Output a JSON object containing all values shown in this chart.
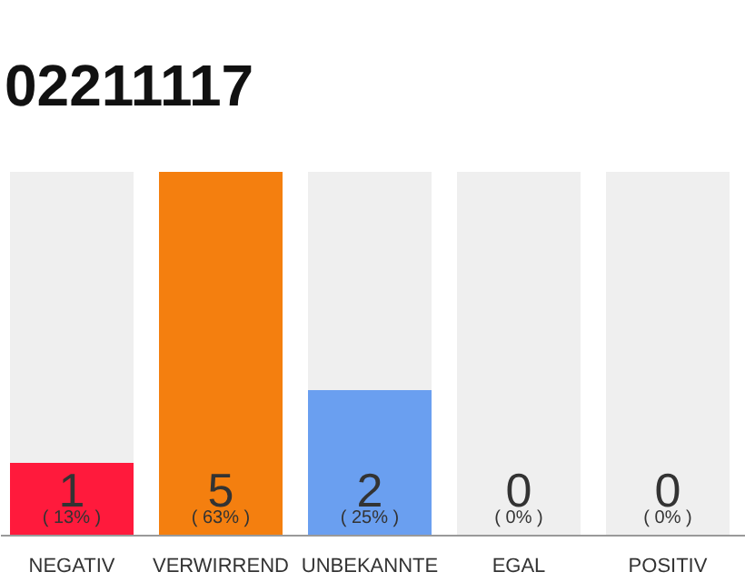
{
  "chart_data": {
    "type": "bar",
    "title": "02211117",
    "categories": [
      "NEGATIV",
      "VERWIRREND",
      "UNBEKANNTE",
      "EGAL",
      "POSITIV"
    ],
    "values": [
      1,
      5,
      2,
      0,
      0
    ],
    "colors": [
      "#ff1a3c",
      "#f47f0f",
      "#6a9ff0",
      "#eeeeee",
      "#eeeeee"
    ],
    "value_labels": [
      "1",
      "5",
      "2",
      "0",
      "0"
    ],
    "annotations": [
      {
        "text": "( 13% )",
        "x": "NEGATIV",
        "y": 0
      },
      {
        "text": "( 63% )",
        "x": "VERWIRREND",
        "y": 0
      },
      {
        "text": "( 25% )",
        "x": "UNBEKANNTE",
        "y": 0
      },
      {
        "text": "( 0% )",
        "x": "EGAL",
        "y": 0
      },
      {
        "text": "( 0% )",
        "x": "POSITIV",
        "y": 0
      }
    ],
    "tick_labels": "x",
    "grid": "x"
  }
}
